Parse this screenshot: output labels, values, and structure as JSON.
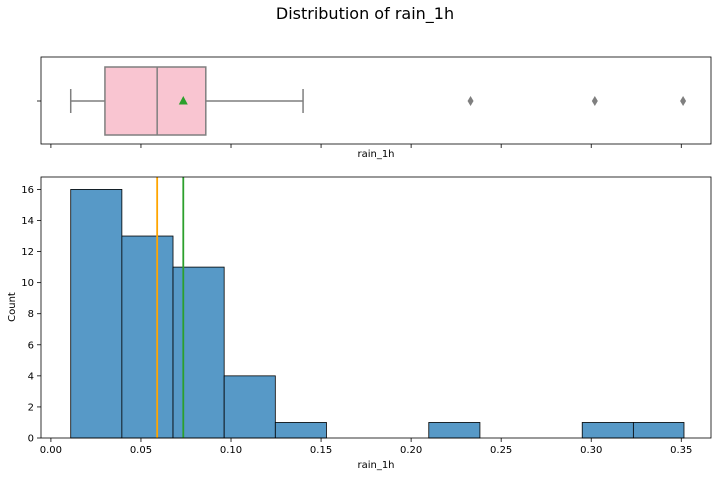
{
  "figure": {
    "title": "Distribution of rain_1h"
  },
  "chart_data": [
    {
      "type": "box",
      "xlabel": "rain_1h",
      "xlim": [
        -0.0055,
        0.3665
      ],
      "stats": {
        "whisker_low": 0.011,
        "q1": 0.03,
        "median": 0.059,
        "mean": 0.0735,
        "q3": 0.086,
        "whisker_high": 0.14
      },
      "outliers": [
        0.233,
        0.302,
        0.351
      ],
      "box_color": "#f9c5d1",
      "mean_marker_color": "#2ca02c",
      "x_ticks_shown": false
    },
    {
      "type": "histogram",
      "xlabel": "rain_1h",
      "ylabel": "Count",
      "xlim": [
        -0.0055,
        0.3665
      ],
      "ylim": [
        0,
        16.8
      ],
      "x_ticks": [
        0.0,
        0.05,
        0.1,
        0.15,
        0.2,
        0.25,
        0.3,
        0.35
      ],
      "x_tick_labels": [
        "0.00",
        "0.05",
        "0.10",
        "0.15",
        "0.20",
        "0.25",
        "0.30",
        "0.35"
      ],
      "y_ticks": [
        0,
        2,
        4,
        6,
        8,
        10,
        12,
        14,
        16
      ],
      "y_tick_labels": [
        "0",
        "2",
        "4",
        "6",
        "8",
        "10",
        "12",
        "14",
        "16"
      ],
      "bin_edges": [
        0.011,
        0.0394,
        0.0678,
        0.0962,
        0.1246,
        0.153,
        0.1814,
        0.2098,
        0.2382,
        0.2666,
        0.295,
        0.3234,
        0.3515
      ],
      "counts": [
        16,
        13,
        11,
        4,
        1,
        0,
        0,
        1,
        0,
        0,
        1,
        1
      ],
      "bar_color": "#5799c7",
      "reference_lines": [
        {
          "kind": "median",
          "value": 0.059,
          "color": "#ffa500"
        },
        {
          "kind": "mean",
          "value": 0.0735,
          "color": "#2ca02c"
        }
      ]
    }
  ]
}
